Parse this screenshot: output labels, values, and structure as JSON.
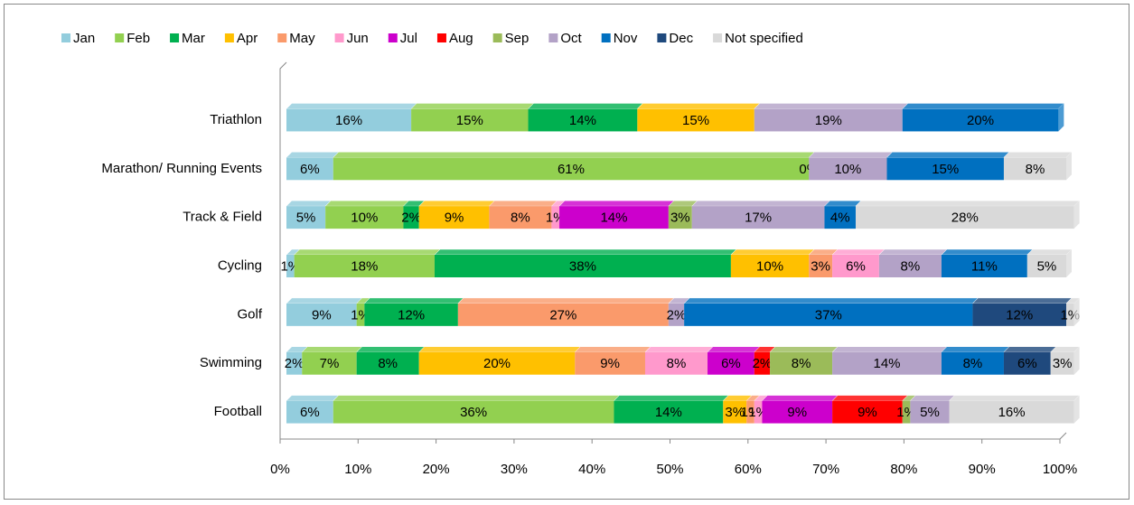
{
  "chart_data": {
    "type": "stacked-bar-horizontal",
    "categories": [
      "Triathlon",
      "Marathon/ Running Events",
      "Track & Field",
      "Cycling",
      "Golf",
      "Swimming",
      "Football"
    ],
    "series": [
      {
        "name": "Jan",
        "color": "#93cddd",
        "values": [
          16,
          6,
          5,
          1,
          9,
          2,
          6
        ],
        "value_labels": [
          "16%",
          "6%",
          "5%",
          "1%",
          "9%",
          "2%",
          "6%"
        ]
      },
      {
        "name": "Feb",
        "color": "#92d050",
        "values": [
          15,
          61,
          10,
          18,
          1,
          7,
          36
        ],
        "value_labels": [
          "15%",
          "61%",
          "10%",
          "18%",
          "1%",
          "7%",
          "36%"
        ]
      },
      {
        "name": "Mar",
        "color": "#00b050",
        "values": [
          14,
          null,
          2,
          38,
          12,
          8,
          14
        ],
        "value_labels": [
          "14%",
          null,
          "2%",
          "38%",
          "12%",
          "8%",
          "14%"
        ]
      },
      {
        "name": "Apr",
        "color": "#ffc000",
        "values": [
          15,
          null,
          9,
          10,
          null,
          20,
          3
        ],
        "value_labels": [
          "15%",
          null,
          "9%",
          "10%",
          null,
          "20%",
          "3%"
        ]
      },
      {
        "name": "May",
        "color": "#fa9a6b",
        "values": [
          null,
          null,
          8,
          3,
          27,
          9,
          1
        ],
        "value_labels": [
          null,
          null,
          "8%",
          "3%",
          "27%",
          "9%",
          "1%"
        ]
      },
      {
        "name": "Jun",
        "color": "#ff99cc",
        "values": [
          null,
          null,
          1,
          6,
          null,
          8,
          1
        ],
        "value_labels": [
          null,
          null,
          "1%",
          "6%",
          null,
          "8%",
          "1%"
        ]
      },
      {
        "name": "Jul",
        "color": "#cc00cc",
        "values": [
          null,
          null,
          14,
          null,
          null,
          6,
          9
        ],
        "value_labels": [
          null,
          null,
          "14%",
          null,
          null,
          "6%",
          "9%"
        ]
      },
      {
        "name": "Aug",
        "color": "#ff0000",
        "values": [
          null,
          null,
          null,
          null,
          null,
          2,
          9
        ],
        "value_labels": [
          null,
          null,
          null,
          null,
          null,
          "2%",
          "9%"
        ]
      },
      {
        "name": "Sep",
        "color": "#9bbb59",
        "values": [
          null,
          0,
          3,
          null,
          null,
          8,
          1
        ],
        "value_labels": [
          null,
          "0%",
          "3%",
          null,
          null,
          "8%",
          "1%"
        ]
      },
      {
        "name": "Oct",
        "color": "#b3a2c7",
        "values": [
          19,
          10,
          17,
          8,
          2,
          14,
          5
        ],
        "value_labels": [
          "19%",
          "10%",
          "17%",
          "8%",
          "2%",
          "14%",
          "5%"
        ]
      },
      {
        "name": "Nov",
        "color": "#0070c0",
        "values": [
          20,
          15,
          4,
          11,
          37,
          8,
          null
        ],
        "value_labels": [
          "20%",
          "15%",
          "4%",
          "11%",
          "37%",
          "8%",
          null
        ]
      },
      {
        "name": "Dec",
        "color": "#1f497d",
        "values": [
          null,
          null,
          null,
          null,
          12,
          6,
          null
        ],
        "value_labels": [
          null,
          null,
          null,
          null,
          "12%",
          "6%",
          null
        ]
      },
      {
        "name": "Not specified",
        "color": "#d9d9d9",
        "values": [
          null,
          8,
          28,
          5,
          1,
          3,
          16
        ],
        "value_labels": [
          null,
          "8%",
          "28%",
          "5%",
          "1%",
          "3%",
          "16%"
        ]
      }
    ],
    "xlim": [
      0,
      100
    ],
    "xticks": [
      {
        "value": 0,
        "label": "0%"
      },
      {
        "value": 10,
        "label": "10%"
      },
      {
        "value": 20,
        "label": "20%"
      },
      {
        "value": 30,
        "label": "30%"
      },
      {
        "value": 40,
        "label": "40%"
      },
      {
        "value": 50,
        "label": "50%"
      },
      {
        "value": 60,
        "label": "60%"
      },
      {
        "value": 70,
        "label": "70%"
      },
      {
        "value": 80,
        "label": "80%"
      },
      {
        "value": 90,
        "label": "90%"
      },
      {
        "value": 100,
        "label": "100%"
      }
    ],
    "legend": "top"
  }
}
